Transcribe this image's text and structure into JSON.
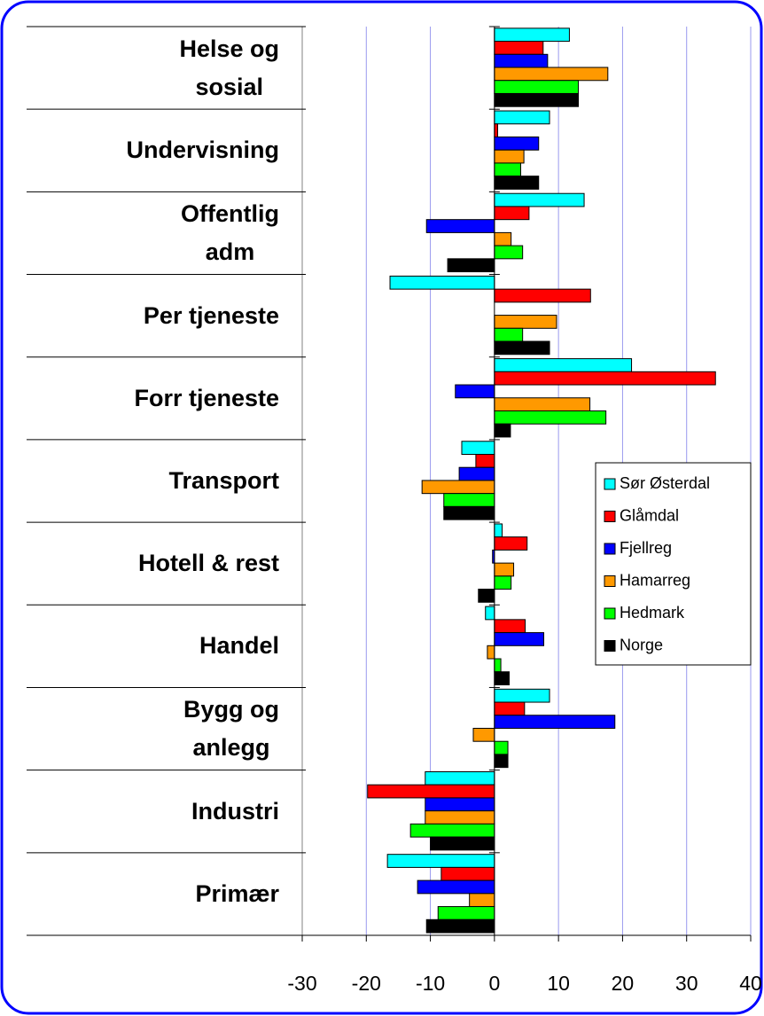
{
  "chart_data": {
    "type": "bar",
    "orientation": "horizontal",
    "categories": [
      "Helse og\nsosial",
      "Undervisning",
      "Offentlig\nadm",
      "Per tjeneste",
      "Forr tjeneste",
      "Transport",
      "Hotell & rest",
      "Handel",
      "Bygg og\nanlegg",
      "Industri",
      "Primær"
    ],
    "series": [
      {
        "name": "Sør Østerdal",
        "color": "#00ffff",
        "values": [
          11.7,
          8.6,
          14,
          -16.3,
          21.4,
          -5.1,
          1.2,
          -1.4,
          8.6,
          -10.8,
          -16.7
        ]
      },
      {
        "name": "Glåmdal",
        "color": "#ff0000",
        "values": [
          7.6,
          0.5,
          5.4,
          15,
          34.5,
          -2.9,
          5.1,
          4.8,
          4.7,
          -19.8,
          -8.3
        ]
      },
      {
        "name": "Fjellreg",
        "color": "#0000ff",
        "values": [
          8.3,
          6.9,
          -10.6,
          0,
          -6.1,
          -5.5,
          -0.3,
          7.7,
          18.8,
          -10.8,
          -12
        ]
      },
      {
        "name": "Hamarreg",
        "color": "#ff9900",
        "values": [
          17.7,
          4.6,
          2.6,
          9.7,
          14.9,
          -11.3,
          3,
          -1.1,
          -3.3,
          -10.8,
          -3.9
        ]
      },
      {
        "name": "Hedmark",
        "color": "#00ff00",
        "values": [
          13.1,
          4.1,
          4.4,
          4.4,
          17.4,
          -7.9,
          2.6,
          1,
          2.1,
          -13.1,
          -8.8
        ]
      },
      {
        "name": "Norge",
        "color": "#000000",
        "values": [
          13.1,
          6.9,
          -7.3,
          8.6,
          2.5,
          -7.9,
          -2.5,
          2.3,
          2.1,
          -10,
          -10.6
        ]
      }
    ],
    "xlim": [
      -30,
      40
    ],
    "xticks": [
      -30,
      -20,
      -10,
      0,
      10,
      20,
      30,
      40
    ],
    "grid": true,
    "legend": "right"
  }
}
